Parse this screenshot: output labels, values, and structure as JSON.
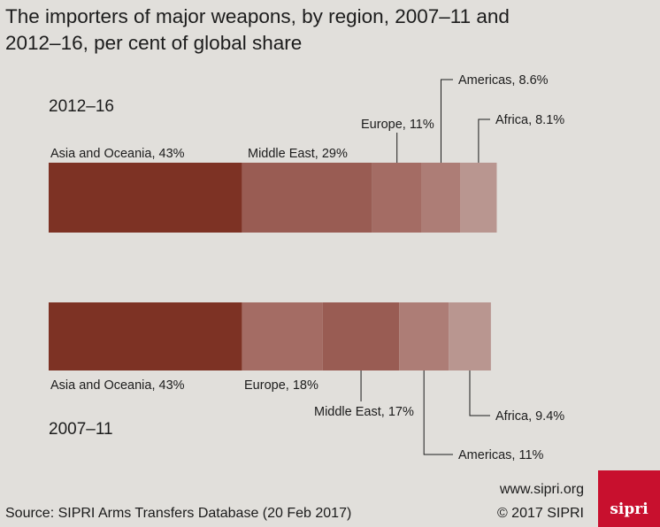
{
  "title_line1": "The importers of major weapons, by region, 2007–11 and",
  "title_line2": "2012–16, per cent of global share",
  "source": "Source: SIPRI Arms Transfers Database (20 Feb 2017)",
  "url": "www.sipri.org",
  "copyright": "© 2017 SIPRI",
  "logo_text": "sipri",
  "chart_data": {
    "type": "bar",
    "orientation": "horizontal",
    "stacked": true,
    "title": "The importers of major weapons, by region, 2007–11 and 2012–16, per cent of global share",
    "unit": "%",
    "bars": [
      {
        "period": "2012–16",
        "segments": [
          {
            "region": "Asia and Oceania",
            "value": 43,
            "label": "Asia and Oceania, 43%",
            "color": "#7d3224"
          },
          {
            "region": "Middle East",
            "value": 29,
            "label": "Middle East, 29%",
            "color": "#995c53"
          },
          {
            "region": "Europe",
            "value": 11,
            "label": "Europe, 11%",
            "color": "#a46c64"
          },
          {
            "region": "Americas",
            "value": 8.6,
            "label": "Americas, 8.6%",
            "color": "#ad7d76"
          },
          {
            "region": "Africa",
            "value": 8.1,
            "label": "Africa, 8.1%",
            "color": "#b99690"
          }
        ]
      },
      {
        "period": "2007–11",
        "segments": [
          {
            "region": "Asia and Oceania",
            "value": 43,
            "label": "Asia and Oceania, 43%",
            "color": "#7d3224"
          },
          {
            "region": "Europe",
            "value": 18,
            "label": "Europe, 18%",
            "color": "#a46c64"
          },
          {
            "region": "Middle East",
            "value": 17,
            "label": "Middle East, 17%",
            "color": "#995c53"
          },
          {
            "region": "Americas",
            "value": 11,
            "label": "Americas, 11%",
            "color": "#ad7d76"
          },
          {
            "region": "Africa",
            "value": 9.4,
            "label": "Africa, 9.4%",
            "color": "#b99690"
          }
        ]
      }
    ]
  }
}
